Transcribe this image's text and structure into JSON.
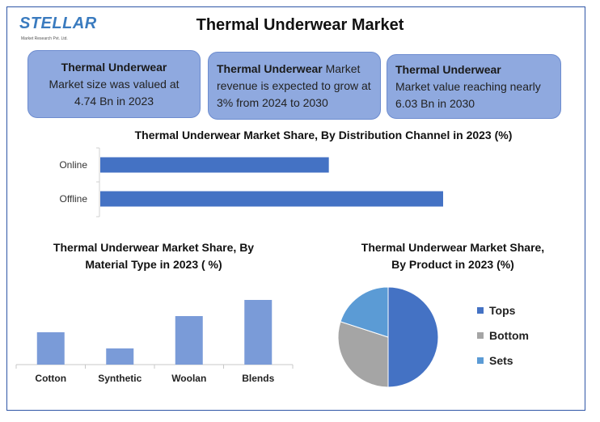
{
  "logo": {
    "word": "STELLAR",
    "sub": "Market Research Pvt. Ltd."
  },
  "title": "Thermal Underwear Market",
  "boxes": [
    {
      "bold": "Thermal Underwear",
      "text": "Market size was valued at 4.74 Bn in 2023"
    },
    {
      "bold": "Thermal Underwear",
      "text": "Market revenue is expected to grow at 3% from 2024 to 2030"
    },
    {
      "bold": "Thermal Underwear",
      "text": "Market value reaching nearly 6.03 Bn in 2030"
    }
  ],
  "colors": {
    "blue_bar": "#4472c4",
    "light_bar": "#7a9bd8",
    "gray": "#a5a5a5",
    "sets": "#5b9bd5"
  },
  "chart_data": [
    {
      "type": "bar",
      "orientation": "horizontal",
      "title": "Thermal Underwear Market Share, By Distribution Channel in 2023 (%)",
      "categories": [
        "Online",
        "Offline"
      ],
      "values": [
        40,
        60
      ],
      "xlim": [
        0,
        60
      ]
    },
    {
      "type": "bar",
      "title_line1": "Thermal Underwear Market Share, By",
      "title_line2": "Material Type in 2023 ( %)",
      "categories": [
        "Cotton",
        "Synthetic",
        "Woolan",
        "Blends"
      ],
      "values": [
        20,
        10,
        30,
        40
      ],
      "ylim": [
        0,
        44
      ]
    },
    {
      "type": "pie",
      "title_line1": "Thermal Underwear Market Share,",
      "title_line2": "By Product  in 2023 (%)",
      "categories": [
        "Tops",
        "Bottom",
        "Sets"
      ],
      "values": [
        50,
        30,
        20
      ],
      "legend": "right"
    }
  ]
}
